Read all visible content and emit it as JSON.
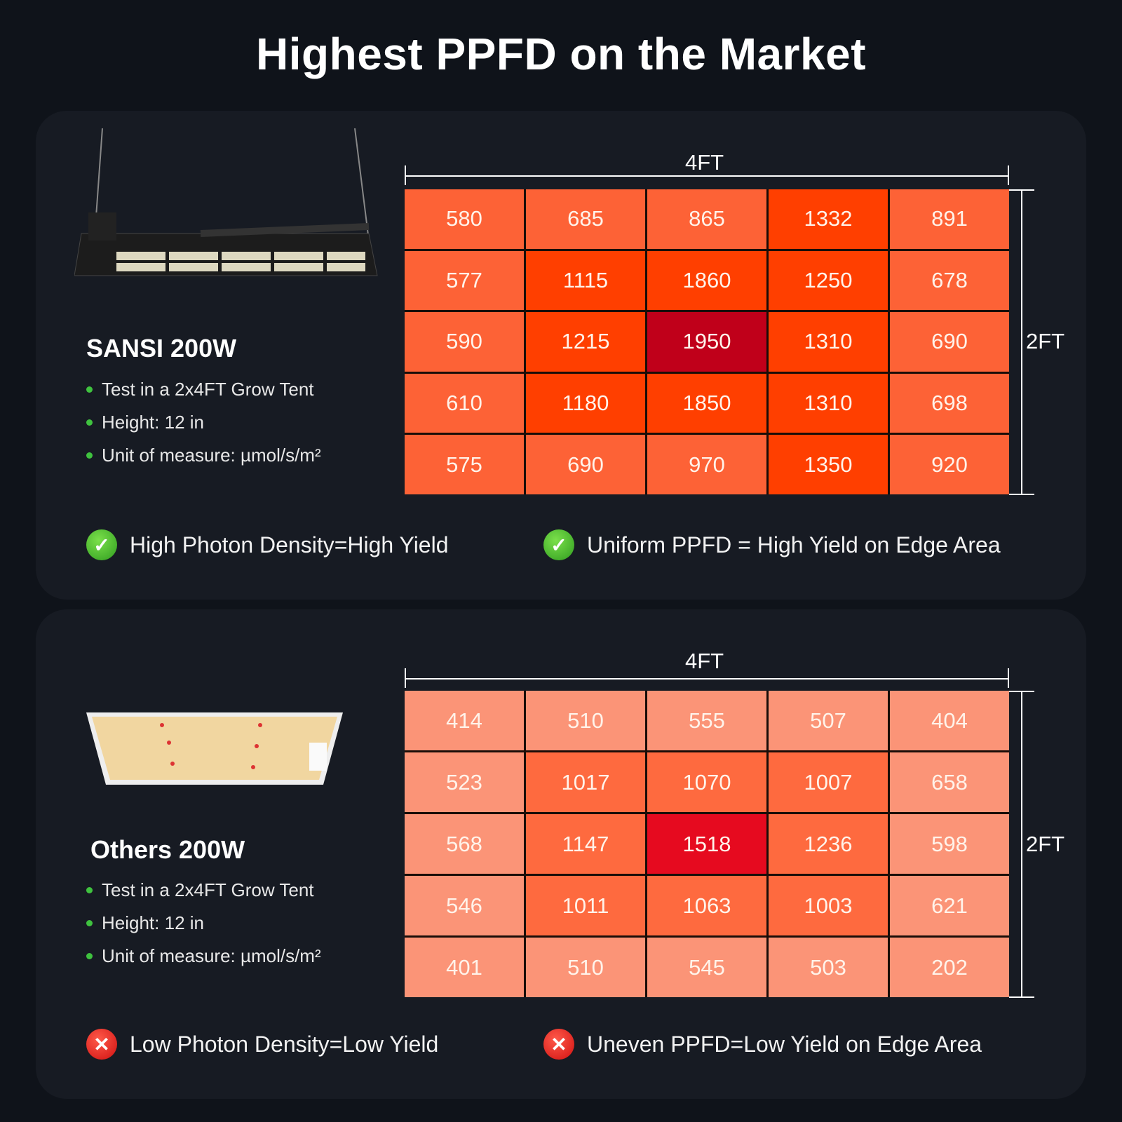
{
  "title": "Highest PPFD on the Market",
  "panels": [
    {
      "name": "SANSI 200W",
      "bullets": [
        "Test in a 2x4FT Grow Tent",
        "Height: 12 in",
        "Unit of measure: µmol/s/m²"
      ],
      "width_label": "4FT",
      "height_label": "2FT",
      "grid": [
        [
          580,
          685,
          865,
          1332,
          891
        ],
        [
          577,
          1115,
          1860,
          1250,
          678
        ],
        [
          590,
          1215,
          1950,
          1310,
          690
        ],
        [
          610,
          1180,
          1850,
          1310,
          698
        ],
        [
          575,
          690,
          970,
          1350,
          920
        ]
      ],
      "colors": {
        "low": "#fd6236",
        "mid": "#ff3f00",
        "high": "#c0001a"
      },
      "thresholds": [
        1000,
        1900
      ],
      "claims": [
        {
          "icon": "check-icon",
          "text": "High Photon Density=High Yield"
        },
        {
          "icon": "check-icon",
          "text": "Uniform PPFD = High Yield on Edge Area"
        }
      ]
    },
    {
      "name": "Others 200W",
      "bullets": [
        "Test in a 2x4FT Grow Tent",
        "Height: 12 in",
        "Unit of measure: µmol/s/m²"
      ],
      "width_label": "4FT",
      "height_label": "2FT",
      "grid": [
        [
          414,
          510,
          555,
          507,
          404
        ],
        [
          523,
          1017,
          1070,
          1007,
          658
        ],
        [
          568,
          1147,
          1518,
          1236,
          598
        ],
        [
          546,
          1011,
          1063,
          1003,
          621
        ],
        [
          401,
          510,
          545,
          503,
          202
        ]
      ],
      "colors": {
        "low": "#fb9477",
        "mid": "#fe6a3f",
        "high": "#e60a1f"
      },
      "thresholds": [
        1000,
        1500
      ],
      "claims": [
        {
          "icon": "cross-icon",
          "text": "Low Photon Density=Low Yield"
        },
        {
          "icon": "cross-icon",
          "text": "Uneven PPFD=Low Yield on Edge Area"
        }
      ]
    }
  ]
}
